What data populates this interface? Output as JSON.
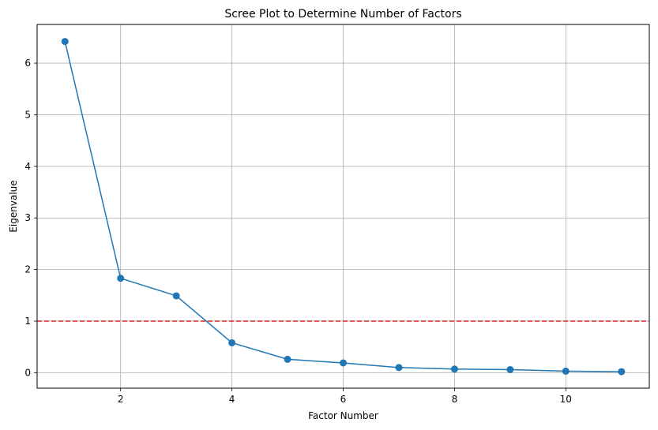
{
  "chart_data": {
    "type": "line",
    "title": "Scree Plot to Determine Number of Factors",
    "xlabel": "Factor Number",
    "ylabel": "Eigenvalue",
    "xlim": [
      0.5,
      11.5
    ],
    "ylim": [
      -0.3,
      6.75
    ],
    "xticks": [
      2,
      4,
      6,
      8,
      10
    ],
    "yticks": [
      0,
      1,
      2,
      3,
      4,
      5,
      6
    ],
    "grid": true,
    "series": [
      {
        "color": "#1f77b4",
        "marker": "circle",
        "x": [
          1,
          2,
          3,
          4,
          5,
          6,
          7,
          8,
          9,
          10,
          11
        ],
        "y": [
          6.42,
          1.83,
          1.49,
          0.58,
          0.26,
          0.19,
          0.1,
          0.07,
          0.06,
          0.03,
          0.02
        ]
      }
    ],
    "reference_line": {
      "y": 1,
      "color": "#d62728",
      "style": "dashed"
    }
  }
}
